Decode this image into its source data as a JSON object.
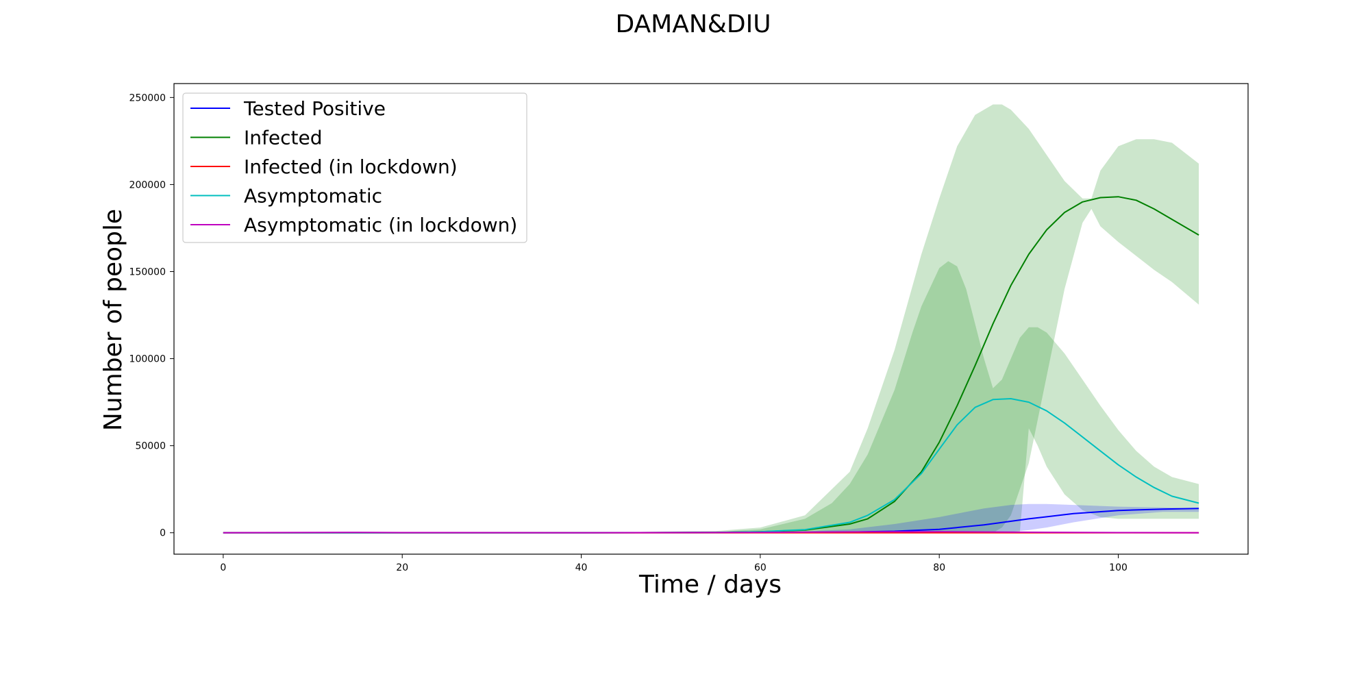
{
  "chart_data": {
    "type": "line",
    "title": "DAMAN&DIU",
    "xlabel": "Time / days",
    "ylabel": "Number of people",
    "xlim": [
      -5.5,
      114.5
    ],
    "ylim": [
      -12300,
      258000
    ],
    "xticks": [
      0,
      20,
      40,
      60,
      80,
      100
    ],
    "yticks": [
      0,
      50000,
      100000,
      150000,
      200000,
      250000
    ],
    "legend_position": "top-left",
    "grid": false,
    "series": [
      {
        "name": "Tested Positive",
        "color": "#0000ff",
        "x": [
          0,
          20,
          40,
          60,
          70,
          75,
          80,
          85,
          90,
          95,
          100,
          105,
          109
        ],
        "y": [
          0,
          0,
          0,
          100,
          400,
          900,
          2000,
          4500,
          8000,
          11000,
          12800,
          13600,
          14000
        ]
      },
      {
        "name": "Infected",
        "color": "#008000",
        "x": [
          0,
          20,
          40,
          55,
          60,
          65,
          70,
          72,
          75,
          78,
          80,
          82,
          84,
          86,
          88,
          90,
          92,
          94,
          96,
          98,
          100,
          102,
          104,
          106,
          109
        ],
        "y": [
          0,
          0,
          0,
          200,
          600,
          1500,
          5000,
          8000,
          18000,
          35000,
          52000,
          73000,
          96000,
          120000,
          142000,
          160000,
          174000,
          184000,
          190000,
          192500,
          193000,
          191000,
          186000,
          180000,
          171000
        ]
      },
      {
        "name": "Infected (in lockdown)",
        "color": "#ff0000",
        "x": [
          0,
          20,
          40,
          60,
          80,
          90,
          100,
          109
        ],
        "y": [
          0,
          0,
          0,
          0,
          0,
          0,
          0,
          0
        ]
      },
      {
        "name": "Asymptomatic",
        "color": "#00bfbf",
        "x": [
          0,
          20,
          40,
          55,
          60,
          65,
          70,
          72,
          75,
          78,
          80,
          82,
          84,
          86,
          88,
          90,
          92,
          94,
          96,
          98,
          100,
          102,
          104,
          106,
          109
        ],
        "y": [
          0,
          0,
          0,
          200,
          600,
          1800,
          6000,
          10000,
          19000,
          34000,
          48000,
          62000,
          72000,
          76500,
          77000,
          75000,
          70000,
          63000,
          55000,
          47000,
          39000,
          32000,
          26000,
          21000,
          17000
        ]
      },
      {
        "name": "Asymptomatic (in lockdown)",
        "color": "#bf00bf",
        "x": [
          0,
          15,
          20,
          40,
          60,
          70,
          80,
          90,
          100,
          109
        ],
        "y": [
          0,
          200,
          100,
          0,
          200,
          500,
          600,
          300,
          100,
          0
        ]
      }
    ],
    "bands": [
      {
        "color": "#008000",
        "opacity": 0.2,
        "x": [
          0,
          40,
          55,
          60,
          65,
          70,
          72,
          75,
          78,
          80,
          82,
          84,
          86,
          87,
          88,
          90,
          92,
          94,
          96,
          97,
          98,
          100,
          102,
          104,
          106,
          109
        ],
        "upper": [
          0,
          0,
          1000,
          3000,
          10000,
          35000,
          60000,
          105000,
          160000,
          192000,
          222000,
          240000,
          246000,
          246000,
          243000,
          232000,
          217000,
          202000,
          192000,
          192000,
          208000,
          222000,
          226000,
          226000,
          224000,
          212000
        ],
        "lower": [
          0,
          0,
          0,
          0,
          0,
          0,
          0,
          0,
          0,
          0,
          0,
          0,
          0,
          3000,
          10000,
          40000,
          90000,
          140000,
          178000,
          186000,
          176000,
          167000,
          159000,
          151000,
          144000,
          131000
        ]
      },
      {
        "color": "#008000",
        "opacity": 0.2,
        "x": [
          0,
          40,
          55,
          60,
          65,
          68,
          70,
          72,
          75,
          77,
          78,
          80,
          81,
          82,
          83,
          84,
          85,
          86,
          87,
          88,
          89,
          90,
          91,
          92,
          94,
          96,
          98,
          100,
          102,
          104,
          106,
          109
        ],
        "upper": [
          0,
          0,
          500,
          2000,
          8000,
          17000,
          28000,
          45000,
          82000,
          115000,
          130000,
          152000,
          156000,
          153000,
          140000,
          120000,
          100000,
          83000,
          88000,
          100000,
          112000,
          118000,
          118000,
          115000,
          103000,
          88000,
          73000,
          59000,
          47000,
          38000,
          32000,
          28000
        ],
        "lower": [
          0,
          0,
          0,
          0,
          0,
          0,
          0,
          0,
          0,
          0,
          0,
          0,
          0,
          0,
          0,
          0,
          0,
          0,
          0,
          0,
          0,
          60000,
          50000,
          38000,
          22000,
          13000,
          9000,
          8000,
          8000,
          8000,
          8000,
          8000
        ]
      },
      {
        "color": "#0000ff",
        "opacity": 0.2,
        "x": [
          0,
          40,
          60,
          65,
          70,
          75,
          80,
          83,
          85,
          88,
          90,
          92,
          95,
          100,
          105,
          109
        ],
        "upper": [
          0,
          0,
          200,
          800,
          2000,
          5000,
          9000,
          12000,
          14000,
          16000,
          16500,
          16500,
          16000,
          15000,
          14500,
          14000
        ],
        "lower": [
          0,
          0,
          0,
          0,
          0,
          0,
          0,
          0,
          0,
          500,
          1500,
          3000,
          6000,
          10000,
          12000,
          12000
        ]
      }
    ]
  }
}
